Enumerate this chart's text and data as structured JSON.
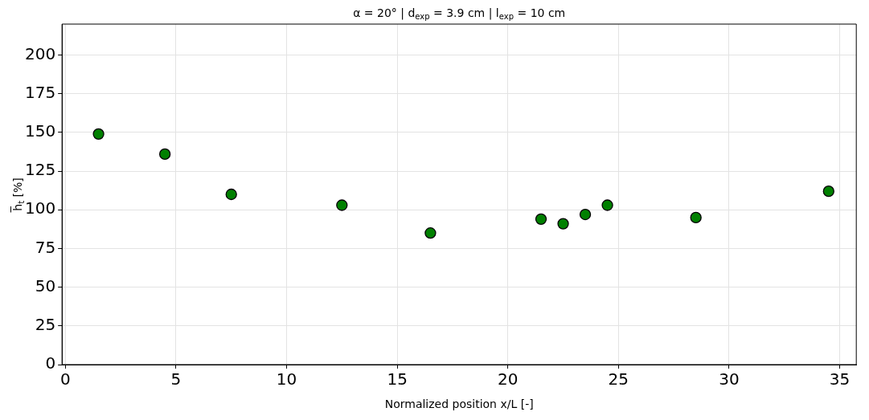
{
  "chart_data": {
    "type": "scatter",
    "title": "α = 20° | d$_{exp}$ = 3.9 cm | l$_{exp}$ = 10 cm",
    "xlabel": "Normalized position x/L [-]",
    "ylabel": "h̅$_{t}$ [%]",
    "x": [
      1.5,
      4.5,
      7.5,
      12.5,
      16.5,
      21.5,
      22.5,
      23.5,
      24.5,
      28.5,
      34.5
    ],
    "series": [
      {
        "color": "#008000",
        "values": [
          149,
          136,
          110,
          103,
          85,
          94,
          91,
          97,
          103,
          95,
          112
        ]
      }
    ],
    "xlim": [
      -0.15,
      35.75
    ],
    "xticks": [
      0,
      5,
      10,
      15,
      20,
      25,
      30,
      35
    ],
    "ylim": [
      0,
      220
    ],
    "yticks": [
      0,
      25,
      50,
      75,
      100,
      125,
      150,
      175,
      200
    ],
    "grid": true,
    "legend": false,
    "marker": "circle"
  }
}
